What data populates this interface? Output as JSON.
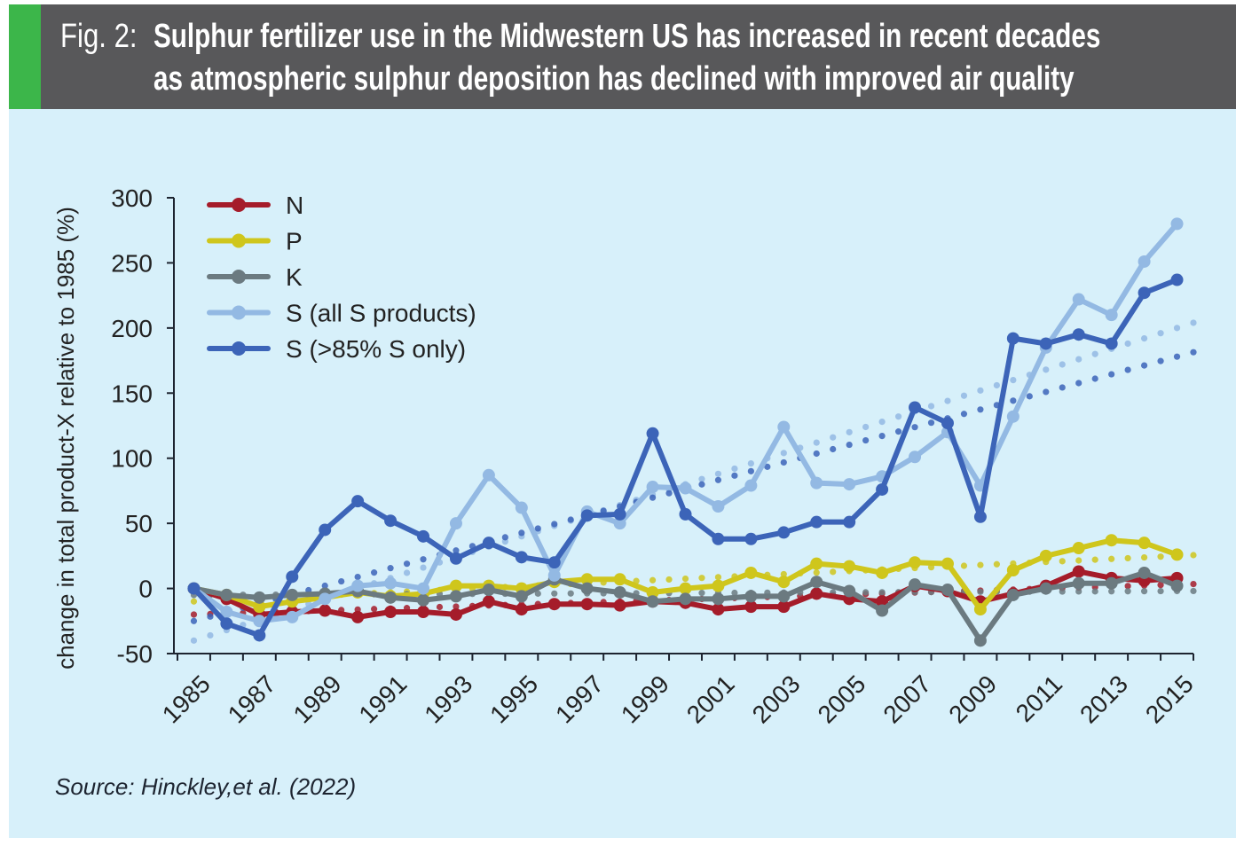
{
  "header": {
    "fig_label": "Fig. 2:",
    "title_line1": "Sulphur fertilizer use in the Midwestern US has increased in recent decades",
    "title_line2": "as atmospheric sulphur deposition has declined with improved air quality",
    "accent_color": "#3cb64a",
    "background_color": "#58585a"
  },
  "source": "Source: Hinckley,et al. (2022)",
  "chart_data": {
    "type": "line",
    "title": "Sulphur fertilizer use in the Midwestern US has increased in recent decades as atmospheric sulphur deposition has declined with improved air quality",
    "xlabel": "",
    "ylabel": "change in total product-X relative to 1985 (%)",
    "ylim": [
      -50,
      300
    ],
    "yticks": [
      -50,
      0,
      50,
      100,
      150,
      200,
      250,
      300
    ],
    "x": [
      1985,
      1986,
      1987,
      1988,
      1989,
      1990,
      1991,
      1992,
      1993,
      1994,
      1995,
      1996,
      1997,
      1998,
      1999,
      2000,
      2001,
      2002,
      2003,
      2004,
      2005,
      2006,
      2007,
      2008,
      2009,
      2010,
      2011,
      2012,
      2013,
      2014,
      2015
    ],
    "xtick_labels": [
      "1985",
      "1987",
      "1989",
      "1991",
      "1993",
      "1995",
      "1997",
      "1999",
      "2001",
      "2003",
      "2005",
      "2007",
      "2009",
      "2011",
      "2013",
      "2015"
    ],
    "grid": false,
    "legend_position": "top-left",
    "series": [
      {
        "name": "N",
        "color": "#a51c2a",
        "values": [
          0,
          -8,
          -20,
          -18,
          -17,
          -22,
          -18,
          -18,
          -20,
          -10,
          -16,
          -12,
          -12,
          -13,
          -10,
          -11,
          -16,
          -14,
          -14,
          -4,
          -8,
          -10,
          2,
          -2,
          -10,
          -4,
          2,
          13,
          8,
          6,
          8
        ],
        "trend": [
          -20,
          3
        ]
      },
      {
        "name": "P",
        "color": "#cfc61c",
        "values": [
          0,
          -5,
          -14,
          -10,
          -7,
          -3,
          -6,
          -4,
          2,
          2,
          0,
          5,
          7,
          7,
          -3,
          0,
          2,
          12,
          5,
          19,
          17,
          12,
          20,
          19,
          -16,
          14,
          25,
          31,
          37,
          35,
          26
        ],
        "trend": [
          -10,
          25
        ]
      },
      {
        "name": "K",
        "color": "#6b7a80",
        "values": [
          0,
          -5,
          -7,
          -5,
          -4,
          -2,
          -7,
          -9,
          -6,
          -1,
          -6,
          7,
          0,
          -3,
          -10,
          -8,
          -8,
          -6,
          -6,
          5,
          -2,
          -17,
          3,
          -1,
          -40,
          -5,
          0,
          4,
          4,
          12,
          2
        ],
        "trend": [
          -5,
          -2
        ]
      },
      {
        "name": "S (all S products)",
        "color": "#93b9e3",
        "values": [
          0,
          -18,
          -25,
          -22,
          -8,
          2,
          4,
          0,
          50,
          87,
          62,
          10,
          59,
          50,
          78,
          77,
          63,
          79,
          124,
          81,
          80,
          86,
          101,
          120,
          79,
          132,
          185,
          222,
          210,
          251,
          280
        ],
        "trend": [
          -40,
          200
        ]
      },
      {
        "name": "S (>85% S only)",
        "color": "#3c64b8",
        "values": [
          0,
          -27,
          -36,
          9,
          45,
          67,
          52,
          40,
          23,
          35,
          24,
          20,
          56,
          57,
          119,
          57,
          38,
          38,
          43,
          51,
          51,
          76,
          139,
          127,
          55,
          192,
          188,
          195,
          188,
          227,
          237
        ],
        "trend": [
          -25,
          178
        ]
      }
    ]
  }
}
